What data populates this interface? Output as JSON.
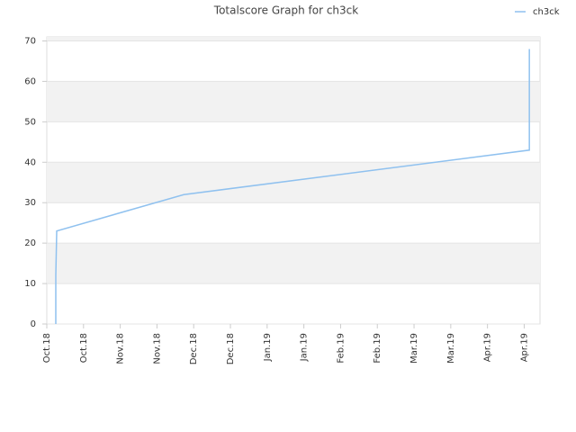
{
  "chart_data": {
    "type": "line",
    "title": "Totalscore Graph for ch3ck",
    "x": [
      0.245,
      0.245,
      0.27,
      3.73,
      13.14,
      13.14
    ],
    "series": [
      {
        "name": "ch3ck",
        "color": "#8fc1ef",
        "values": [
          0,
          12,
          23,
          32,
          43,
          68
        ]
      }
    ],
    "xlim": [
      0,
      13.43
    ],
    "xticks": [
      {
        "value": 0,
        "label": "Oct.18"
      },
      {
        "value": 1,
        "label": "Oct.18"
      },
      {
        "value": 2,
        "label": "Nov.18"
      },
      {
        "value": 3,
        "label": "Nov.18"
      },
      {
        "value": 4,
        "label": "Dec.18"
      },
      {
        "value": 5,
        "label": "Dec.18"
      },
      {
        "value": 6,
        "label": "Jan.19"
      },
      {
        "value": 7,
        "label": "Jan.19"
      },
      {
        "value": 8,
        "label": "Feb.19"
      },
      {
        "value": 9,
        "label": "Feb.19"
      },
      {
        "value": 10,
        "label": "Mar.19"
      },
      {
        "value": 11,
        "label": "Mar.19"
      },
      {
        "value": 12,
        "label": "Apr.19"
      },
      {
        "value": 13,
        "label": "Apr.19"
      }
    ],
    "ylim": [
      0,
      71
    ],
    "yticks": [
      0,
      10,
      20,
      30,
      40,
      50,
      60,
      70
    ],
    "grid": true,
    "legend": "top-right"
  }
}
